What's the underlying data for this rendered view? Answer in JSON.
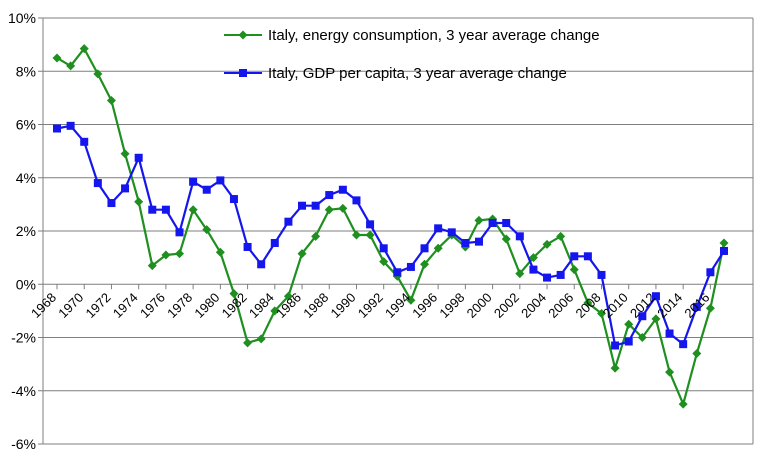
{
  "chart_data": {
    "type": "line",
    "title": "",
    "xlabel": "",
    "ylabel": "",
    "ylim": [
      -6,
      10
    ],
    "y_ticks": [
      {
        "value": 10,
        "label": "10%"
      },
      {
        "value": 8,
        "label": "8%"
      },
      {
        "value": 6,
        "label": "6%"
      },
      {
        "value": 4,
        "label": "4%"
      },
      {
        "value": 2,
        "label": "2%"
      },
      {
        "value": 0,
        "label": "0%"
      },
      {
        "value": -2,
        "label": "-2%"
      },
      {
        "value": -4,
        "label": "-4%"
      },
      {
        "value": -6,
        "label": "-6%"
      }
    ],
    "x": [
      1968,
      1969,
      1970,
      1971,
      1972,
      1973,
      1974,
      1975,
      1976,
      1977,
      1978,
      1979,
      1980,
      1981,
      1982,
      1983,
      1984,
      1985,
      1986,
      1987,
      1988,
      1989,
      1990,
      1991,
      1992,
      1993,
      1994,
      1995,
      1996,
      1997,
      1998,
      1999,
      2000,
      2001,
      2002,
      2003,
      2004,
      2005,
      2006,
      2007,
      2008,
      2009,
      2010,
      2011,
      2012,
      2013,
      2014,
      2015,
      2016,
      2017
    ],
    "x_tick_labels": [
      "1968",
      "1970",
      "1972",
      "1974",
      "1976",
      "1978",
      "1980",
      "1982",
      "1984",
      "1986",
      "1988",
      "1990",
      "1992",
      "1994",
      "1996",
      "1998",
      "2000",
      "2002",
      "2004",
      "2006",
      "2008",
      "2010",
      "2012",
      "2014",
      "2016"
    ],
    "grid": "horizontal",
    "legend_position": "top-center",
    "series": [
      {
        "name": "Italy, energy consumption, 3 year average change",
        "color": "#1f8f1f",
        "marker": "diamond",
        "values": [
          8.5,
          8.2,
          8.85,
          7.9,
          6.9,
          4.9,
          3.1,
          0.7,
          1.1,
          1.15,
          2.8,
          2.05,
          1.2,
          -0.35,
          -2.2,
          -2.05,
          -1.0,
          -0.45,
          1.15,
          1.8,
          2.8,
          2.85,
          1.85,
          1.85,
          0.85,
          0.3,
          -0.6,
          0.75,
          1.35,
          1.85,
          1.4,
          2.4,
          2.45,
          1.7,
          0.4,
          1.0,
          1.5,
          1.8,
          0.55,
          -0.7,
          -1.1,
          -3.15,
          -1.5,
          -2.0,
          -1.3,
          -3.3,
          -4.5,
          -2.6,
          -0.9,
          1.55
        ]
      },
      {
        "name": "Italy, GDP per capita, 3 year average change",
        "color": "#1515ee",
        "marker": "square",
        "values": [
          5.85,
          5.95,
          5.35,
          3.8,
          3.05,
          3.6,
          4.75,
          2.8,
          2.8,
          1.95,
          3.85,
          3.55,
          3.9,
          3.2,
          1.4,
          0.75,
          1.55,
          2.35,
          2.95,
          2.95,
          3.35,
          3.55,
          3.15,
          2.25,
          1.35,
          0.45,
          0.65,
          1.35,
          2.1,
          1.95,
          1.55,
          1.6,
          2.3,
          2.3,
          1.8,
          0.55,
          0.25,
          0.35,
          1.05,
          1.05,
          0.35,
          -2.3,
          -2.15,
          -1.2,
          -0.45,
          -1.85,
          -2.25,
          -0.85,
          0.45,
          1.25
        ]
      }
    ]
  }
}
